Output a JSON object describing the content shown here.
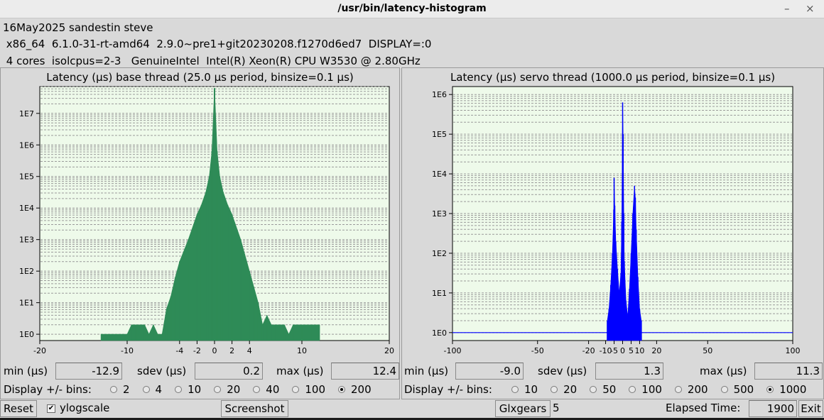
{
  "window": {
    "title": "/usr/bin/latency-histogram",
    "minimize_glyph": "–",
    "close_glyph": "×"
  },
  "info": {
    "line1": "16May2025 sandestin steve",
    "line2": " x86_64  6.1.0-31-rt-amd64  2.9.0~pre1+git20230208.f1270d6ed7  DISPLAY=:0",
    "line3": " 4 cores  isolcpus=2-3   GenuineIntel  Intel(R) Xeon(R) CPU W3530 @ 2.80GHz"
  },
  "base": {
    "min_label": "min (µs)",
    "min_value": "-12.9",
    "sdev_label": "sdev (µs)",
    "sdev_value": "0.2",
    "max_label": "max (µs)",
    "max_value": "12.4",
    "display_label": "Display +/- bins:",
    "bins": [
      "2",
      "4",
      "10",
      "20",
      "40",
      "100",
      "200"
    ],
    "selected": "200"
  },
  "servo": {
    "min_label": "min (µs)",
    "min_value": "-9.0",
    "sdev_label": "sdev (µs)",
    "sdev_value": "1.3",
    "max_label": "max (µs)",
    "max_value": "11.3",
    "display_label": "Display +/- bins:",
    "bins": [
      "10",
      "20",
      "50",
      "100",
      "200",
      "500",
      "1000"
    ],
    "selected": "1000"
  },
  "bottom": {
    "reset": "Reset",
    "ylog_label": "ylogscale",
    "ylog_checked": true,
    "check_glyph": "✔",
    "screenshot": "Screenshot",
    "glxgears": "Glxgears",
    "glxgears_count": "5",
    "elapsed_label": "Elapsed Time:",
    "elapsed_value": "1900",
    "exit": "Exit"
  },
  "chart_data": [
    {
      "type": "bar",
      "title": "Latency (µs) base thread (25.0 µs period, binsize=0.1 µs)",
      "xlabel": "",
      "ylabel": "",
      "xlim": [
        -20,
        20
      ],
      "yscale": "log",
      "ylim_exp": [
        -0.2,
        7.85
      ],
      "xticks": [
        -20,
        -10,
        -4,
        -2,
        0,
        2,
        4,
        10,
        20
      ],
      "yticks": [
        "1E0",
        "1E1",
        "1E2",
        "1E3",
        "1E4",
        "1E5",
        "1E6",
        "1E7"
      ],
      "grid": true,
      "color": "#2e8b57",
      "background": "#eefaea",
      "peak_x": 0,
      "log10_counts": [
        [
          -13,
          0
        ],
        [
          -12,
          0
        ],
        [
          -11,
          0
        ],
        [
          -10,
          0
        ],
        [
          -9.5,
          0.3
        ],
        [
          -9,
          0.3
        ],
        [
          -8,
          0.3
        ],
        [
          -7.5,
          0
        ],
        [
          -7,
          0.3
        ],
        [
          -6.5,
          0
        ],
        [
          -6,
          0
        ],
        [
          -5.5,
          0.8
        ],
        [
          -5,
          1.2
        ],
        [
          -4.5,
          1.8
        ],
        [
          -4,
          2.3
        ],
        [
          -3,
          3.0
        ],
        [
          -2,
          3.8
        ],
        [
          -1.5,
          4.1
        ],
        [
          -1,
          4.5
        ],
        [
          -0.6,
          5.0
        ],
        [
          -0.3,
          5.8
        ],
        [
          0,
          7.8
        ],
        [
          0.3,
          5.8
        ],
        [
          0.6,
          5.0
        ],
        [
          1,
          4.5
        ],
        [
          1.5,
          4.1
        ],
        [
          2,
          3.8
        ],
        [
          3,
          3.0
        ],
        [
          4,
          2.0
        ],
        [
          4.5,
          1.5
        ],
        [
          5,
          1.0
        ],
        [
          5.5,
          0.3
        ],
        [
          6,
          0.6
        ],
        [
          6.5,
          0.3
        ],
        [
          7,
          0.3
        ],
        [
          8,
          0.3
        ],
        [
          8.5,
          0
        ],
        [
          9,
          0.3
        ],
        [
          10,
          0.3
        ],
        [
          11,
          0.3
        ],
        [
          12,
          0.3
        ]
      ]
    },
    {
      "type": "bar",
      "title": "Latency (µs) servo thread (1000.0 µs period, binsize=0.1 µs)",
      "xlabel": "",
      "ylabel": "",
      "xlim": [
        -100,
        100
      ],
      "yscale": "log",
      "ylim_exp": [
        -0.2,
        6.2
      ],
      "xticks": [
        -100,
        -50,
        -20,
        -10,
        -5,
        0,
        5,
        10,
        20,
        50,
        100
      ],
      "yticks": [
        "1E0",
        "1E1",
        "1E2",
        "1E3",
        "1E4",
        "1E5",
        "1E6"
      ],
      "grid": true,
      "color": "#0000ff",
      "background": "#eefaea",
      "baseline_range": [
        -100,
        100
      ],
      "log10_counts": [
        [
          -9,
          0.3
        ],
        [
          -8,
          0.6
        ],
        [
          -7,
          1.2
        ],
        [
          -6,
          2.0
        ],
        [
          -5.2,
          3.1
        ],
        [
          -5,
          3.9
        ],
        [
          -4.6,
          3.2
        ],
        [
          -4,
          2.3
        ],
        [
          -3,
          1.6
        ],
        [
          -2,
          1.0
        ],
        [
          -1,
          1.5
        ],
        [
          -0.5,
          2.8
        ],
        [
          0,
          5.8
        ],
        [
          0.3,
          5.0
        ],
        [
          0.7,
          3.0
        ],
        [
          1,
          1.8
        ],
        [
          2,
          0.8
        ],
        [
          3,
          0.4
        ],
        [
          4,
          1.1
        ],
        [
          5,
          2.0
        ],
        [
          6,
          3.0
        ],
        [
          7,
          3.7
        ],
        [
          7.5,
          3.4
        ],
        [
          8,
          2.6
        ],
        [
          9,
          1.4
        ],
        [
          10,
          0.6
        ],
        [
          11,
          0.3
        ]
      ]
    }
  ]
}
